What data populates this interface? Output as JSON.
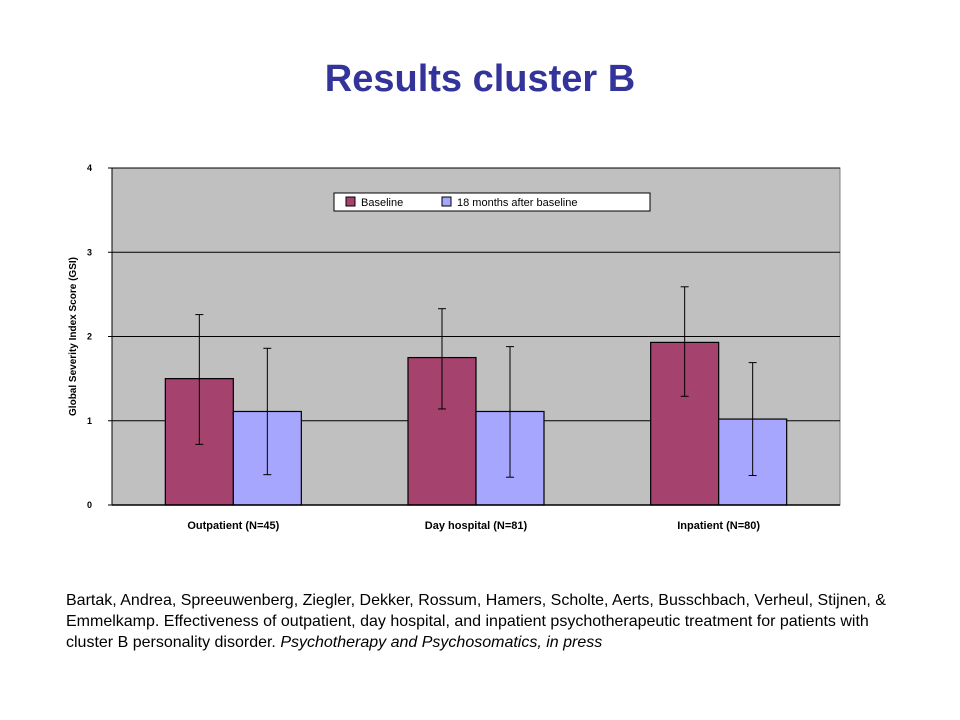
{
  "title": "Results cluster B",
  "chart_data": {
    "type": "bar",
    "categories": [
      "Outpatient (N=45)",
      "Day hospital (N=81)",
      "Inpatient (N=80)"
    ],
    "series": [
      {
        "name": "Baseline",
        "color": "#A5426E",
        "values": [
          1.5,
          1.75,
          1.93
        ],
        "error_low": [
          0.72,
          1.14,
          1.29
        ],
        "error_high": [
          2.26,
          2.33,
          2.59
        ]
      },
      {
        "name": "18 months after baseline",
        "color": "#A6A6FF",
        "values": [
          1.11,
          1.11,
          1.02
        ],
        "error_low": [
          0.36,
          0.33,
          0.35
        ],
        "error_high": [
          1.86,
          1.88,
          1.69
        ]
      }
    ],
    "ylabel": "Global Severity Index Score (GSI)",
    "xlabel": "",
    "ylim": [
      0,
      4
    ],
    "yticks": [
      "0",
      "1",
      "2",
      "3",
      "4"
    ],
    "grid": true,
    "legend_position": "top-right",
    "plot_background": "#C0C0C0"
  },
  "citation": {
    "authors": "Bartak, Andrea, Spreeuwenberg, Ziegler, Dekker, Rossum, Hamers, Scholte, Aerts,  Busschbach, Verheul, Stijnen, & Emmelkamp. Effectiveness of outpatient, day hospital, and inpatient psychotherapeutic treatment for patients with cluster B personality disorder.",
    "journal": "Psychotherapy and Psychosomatics, in press"
  }
}
